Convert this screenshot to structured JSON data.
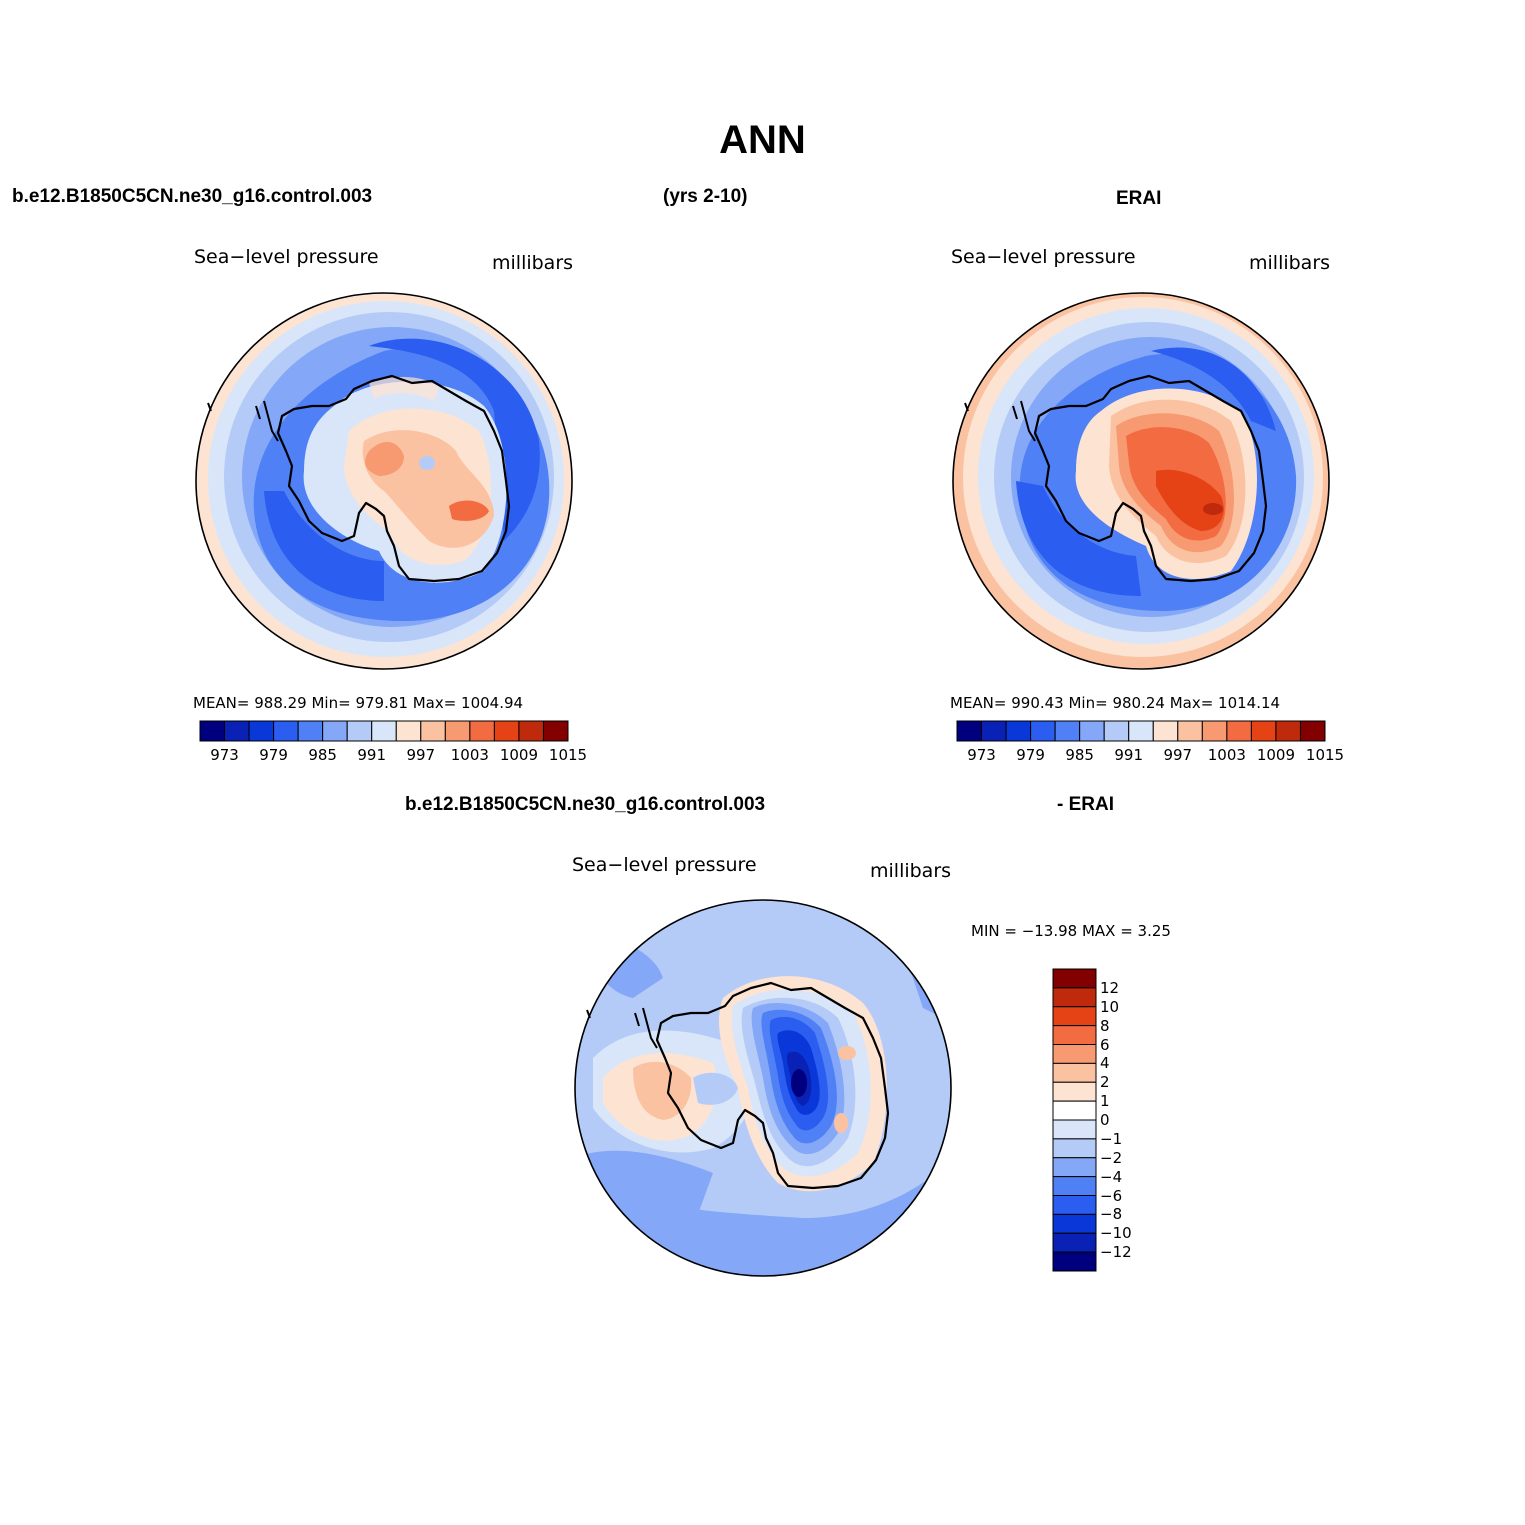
{
  "title": "ANN",
  "header": {
    "case_name": "b.e12.B1850C5CN.ne30_g16.control.003",
    "years": "(yrs 2-10)",
    "obs_name": "ERAI"
  },
  "diff_header": {
    "case_name": "b.e12.B1850C5CN.ne30_g16.control.003",
    "suffix": "- ERAI"
  },
  "panels": {
    "model": {
      "variable": "Sea−level pressure",
      "units": "millibars",
      "stats": "MEAN=  988.29   Min=  979.81   Max=  1004.94"
    },
    "obs": {
      "variable": "Sea−level pressure",
      "units": "millibars",
      "stats": "MEAN=  990.43   Min=  980.24   Max=  1014.14"
    },
    "diff": {
      "variable": "Sea−level pressure",
      "units": "millibars",
      "stats": "MIN  =  −13.98  MAX  =     3.25"
    }
  },
  "colorbar_abs": {
    "labels": [
      "973",
      "979",
      "985",
      "991",
      "997",
      "1003",
      "1009",
      "1015"
    ],
    "colors": [
      "#00007f",
      "#0a21b5",
      "#0a38d8",
      "#2a5df0",
      "#4f80f5",
      "#84a8f7",
      "#b4cbf7",
      "#d9e6fa",
      "#fde3d2",
      "#fbc2a2",
      "#f79a72",
      "#f26b41",
      "#e54216",
      "#bf2a0c",
      "#820000"
    ]
  },
  "colorbar_diff": {
    "labels": [
      "12",
      "10",
      "8",
      "6",
      "4",
      "2",
      "1",
      "0",
      "−1",
      "−2",
      "−4",
      "−6",
      "−8",
      "−10",
      "−12"
    ],
    "colors": [
      "#820000",
      "#bf2a0c",
      "#e54216",
      "#f26b41",
      "#f79a72",
      "#fbc2a2",
      "#fde3d2",
      "#ffffff",
      "#d9e6fa",
      "#b4cbf7",
      "#84a8f7",
      "#4f80f5",
      "#2a5df0",
      "#0a38d8",
      "#0a21b5",
      "#00007f"
    ]
  }
}
